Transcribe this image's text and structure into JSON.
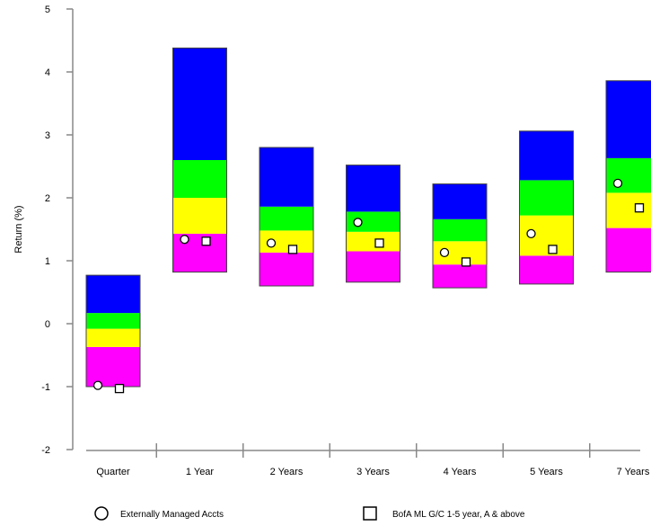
{
  "chart_data": {
    "type": "bar",
    "subtype": "floating-stacked-range",
    "ylabel": "Return (%)",
    "ylim": [
      -2,
      5
    ],
    "yticks": [
      -2,
      -1,
      0,
      1,
      2,
      3,
      4,
      5
    ],
    "grid": false,
    "legend_position": "bottom",
    "categories": [
      "Quarter",
      "1 Year",
      "2 Years",
      "3 Years",
      "4 Years",
      "5 Years",
      "7 Years"
    ],
    "band_colors": [
      "#ff00ff",
      "#ffff00",
      "#00ff00",
      "#0000ff"
    ],
    "bands": [
      [
        -1.0,
        -0.37,
        -0.08,
        0.17,
        0.77
      ],
      [
        0.82,
        1.43,
        2.0,
        2.6,
        4.38
      ],
      [
        0.6,
        1.13,
        1.48,
        1.86,
        2.8
      ],
      [
        0.66,
        1.15,
        1.46,
        1.78,
        2.52
      ],
      [
        0.57,
        0.94,
        1.31,
        1.66,
        2.22
      ],
      [
        0.63,
        1.08,
        1.72,
        2.28,
        3.06
      ],
      [
        0.82,
        1.52,
        2.08,
        2.63,
        3.86
      ]
    ],
    "series": [
      {
        "name": "Externally Managed Accts",
        "marker": "circle",
        "values": [
          -0.98,
          1.34,
          1.28,
          1.61,
          1.13,
          1.43,
          2.23
        ]
      },
      {
        "name": "BofA ML G/C 1-5 year, A & above",
        "marker": "square",
        "values": [
          -1.03,
          1.31,
          1.18,
          1.28,
          0.98,
          1.18,
          1.84
        ]
      }
    ]
  }
}
